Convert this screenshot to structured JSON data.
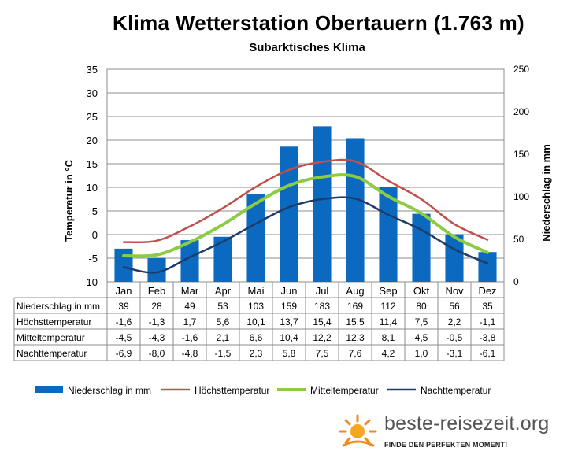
{
  "title": "Klima Wetterstation Obertauern (1.763 m)",
  "subtitle": "Subarktisches  Klima",
  "brand": {
    "name": "beste-reisezeit.org",
    "slogan": "FINDE DEN PERFEKTEN MOMENT!"
  },
  "colors": {
    "bar": "#0b6ac0",
    "max": "#c0504d",
    "mean": "#8ccc42",
    "night": "#1f3b68"
  },
  "chart_data": {
    "type": "bar+line",
    "categories": [
      "Jan",
      "Feb",
      "Mar",
      "Apr",
      "Mai",
      "Jun",
      "Jul",
      "Aug",
      "Sep",
      "Okt",
      "Nov",
      "Dez"
    ],
    "ylabel": "Temperatur in °C",
    "y2label": "Niederschlag in mm",
    "ylim": [
      -10,
      35
    ],
    "y2lim": [
      0,
      250
    ],
    "yticks": [
      "35",
      "30",
      "25",
      "20",
      "15",
      "10",
      "5",
      "0",
      "-5",
      "-10"
    ],
    "y2ticks": [
      "250",
      "200",
      "150",
      "100",
      "50",
      "0"
    ],
    "grid": true,
    "legend_position": "bottom",
    "series": [
      {
        "name": "Niederschlag in mm",
        "type": "bar",
        "axis": "right",
        "values": [
          39,
          28,
          49,
          53,
          103,
          159,
          183,
          169,
          112,
          80,
          56,
          35
        ],
        "labels": [
          "39",
          "28",
          "49",
          "53",
          "103",
          "159",
          "183",
          "169",
          "112",
          "80",
          "56",
          "35"
        ]
      },
      {
        "name": "Höchsttemperatur",
        "type": "line",
        "axis": "left",
        "values": [
          -1.6,
          -1.3,
          1.7,
          5.6,
          10.1,
          13.7,
          15.4,
          15.5,
          11.4,
          7.5,
          2.2,
          -1.1
        ],
        "labels": [
          "-1,6",
          "-1,3",
          "1,7",
          "5,6",
          "10,1",
          "13,7",
          "15,4",
          "15,5",
          "11,4",
          "7,5",
          "2,2",
          "-1,1"
        ]
      },
      {
        "name": "Mitteltemperatur",
        "type": "line",
        "axis": "left",
        "values": [
          -4.5,
          -4.3,
          -1.6,
          2.1,
          6.6,
          10.4,
          12.2,
          12.3,
          8.1,
          4.5,
          -0.5,
          -3.8
        ],
        "labels": [
          "-4,5",
          "-4,3",
          "-1,6",
          "2,1",
          "6,6",
          "10,4",
          "12,2",
          "12,3",
          "8,1",
          "4,5",
          "-0,5",
          "-3,8"
        ]
      },
      {
        "name": "Nachttemperatur",
        "type": "line",
        "axis": "left",
        "values": [
          -6.9,
          -8.0,
          -4.8,
          -1.5,
          2.3,
          5.8,
          7.5,
          7.6,
          4.2,
          1.0,
          -3.1,
          -6.1
        ],
        "labels": [
          "-6,9",
          "-8,0",
          "-4,8",
          "-1,5",
          "2,3",
          "5,8",
          "7,5",
          "7,6",
          "4,2",
          "1,0",
          "-3,1",
          "-6,1"
        ]
      }
    ]
  }
}
